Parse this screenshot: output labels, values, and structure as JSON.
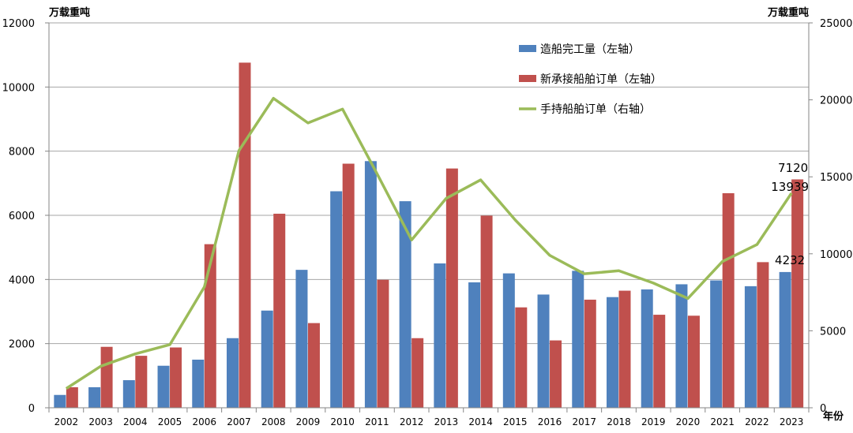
{
  "chart_data": {
    "type": "bar+line",
    "title": "",
    "left_axis_unit": "万载重吨",
    "right_axis_unit": "万载重吨",
    "x_axis_unit": "年份",
    "categories": [
      "2002",
      "2003",
      "2004",
      "2005",
      "2006",
      "2007",
      "2008",
      "2009",
      "2010",
      "2011",
      "2012",
      "2013",
      "2014",
      "2015",
      "2016",
      "2017",
      "2018",
      "2019",
      "2020",
      "2021",
      "2022",
      "2023"
    ],
    "left_ylim": [
      0,
      12000
    ],
    "left_ticks": [
      "0",
      "2000",
      "4000",
      "6000",
      "8000",
      "10000",
      "12000"
    ],
    "right_ylim": [
      0,
      25000
    ],
    "right_ticks": [
      "0",
      "5000",
      "10000",
      "15000",
      "20000",
      "25000"
    ],
    "grid": true,
    "legend_position": "top-right",
    "series": [
      {
        "name": "造船完工量（左轴）",
        "kind": "bar",
        "axis": "left",
        "color": "#4F81BD",
        "values": [
          400,
          640,
          860,
          1310,
          1500,
          2170,
          3030,
          4300,
          6750,
          7690,
          6440,
          4500,
          3910,
          4190,
          3530,
          4270,
          3450,
          3690,
          3850,
          3970,
          3790,
          4232
        ]
      },
      {
        "name": "新承接船舶订单（左轴）",
        "kind": "bar",
        "axis": "left",
        "color": "#C0504D",
        "values": [
          640,
          1900,
          1620,
          1880,
          5100,
          10760,
          6050,
          2640,
          7610,
          3990,
          2170,
          7460,
          5990,
          3130,
          2100,
          3370,
          3650,
          2900,
          2870,
          6690,
          4540,
          7120
        ]
      },
      {
        "name": "手持船舶订单（右轴）",
        "kind": "line",
        "axis": "right",
        "color": "#9BBB59",
        "values": [
          1250,
          2700,
          3500,
          4100,
          7850,
          16700,
          20100,
          18500,
          19400,
          15200,
          10900,
          13600,
          14800,
          12200,
          9900,
          8700,
          8900,
          8100,
          7100,
          9500,
          10600,
          13939
        ]
      }
    ],
    "annotations": [
      {
        "text": "7120",
        "category": "2023",
        "series": "新承接船舶订单（左轴）"
      },
      {
        "text": "13939",
        "category": "2023",
        "series": "手持船舶订单（右轴）"
      },
      {
        "text": "4232",
        "category": "2023",
        "series": "造船完工量（左轴）"
      }
    ]
  }
}
